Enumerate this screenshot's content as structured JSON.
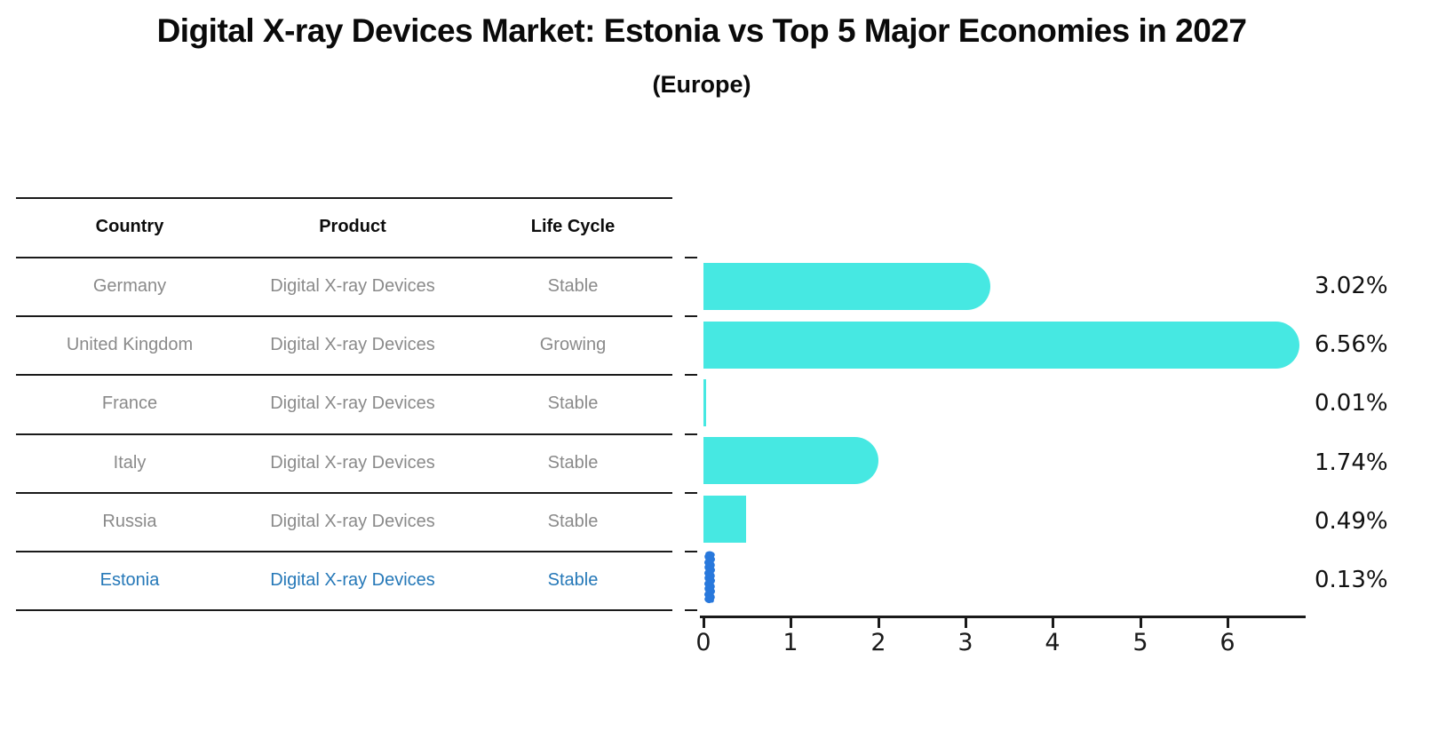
{
  "title": "Digital X-ray Devices Market: Estonia vs Top 5 Major Economies in 2027",
  "subtitle": "(Europe)",
  "table": {
    "headers": {
      "country": "Country",
      "product": "Product",
      "life_cycle": "Life Cycle"
    },
    "rows": [
      {
        "country": "Germany",
        "product": "Digital X-ray Devices",
        "life_cycle": "Stable"
      },
      {
        "country": "United Kingdom",
        "product": "Digital X-ray Devices",
        "life_cycle": "Growing"
      },
      {
        "country": "France",
        "product": "Digital X-ray Devices",
        "life_cycle": "Stable"
      },
      {
        "country": "Italy",
        "product": "Digital X-ray Devices",
        "life_cycle": "Stable"
      },
      {
        "country": "Russia",
        "product": "Digital X-ray Devices",
        "life_cycle": "Stable"
      },
      {
        "country": "Estonia",
        "product": "Digital X-ray Devices",
        "life_cycle": "Stable"
      }
    ],
    "highlight_row": "Estonia"
  },
  "chart_data": {
    "type": "bar",
    "orientation": "horizontal",
    "categories": [
      "Germany",
      "United Kingdom",
      "France",
      "Italy",
      "Russia",
      "Estonia"
    ],
    "values": [
      3.02,
      6.56,
      0.01,
      1.74,
      0.49,
      0.13
    ],
    "value_labels": [
      "3.02%",
      "6.56%",
      "0.01%",
      "1.74%",
      "0.49%",
      "0.13%"
    ],
    "x_ticks": [
      "0",
      "1",
      "2",
      "3",
      "4",
      "5",
      "6"
    ],
    "xlim": [
      0,
      6.9
    ],
    "grid": false,
    "legend": "none",
    "xlabel": "",
    "ylabel": "",
    "bar_color": "#46e8e2",
    "highlight_bar_color": "#2878dc",
    "highlight_index": 5
  },
  "colors": {
    "bar": "#46e8e2",
    "highlight_bar": "#2878dc",
    "highlight_text": "#2578b8",
    "row_text": "#8a8a8a",
    "axis": "#1a1a1a"
  }
}
